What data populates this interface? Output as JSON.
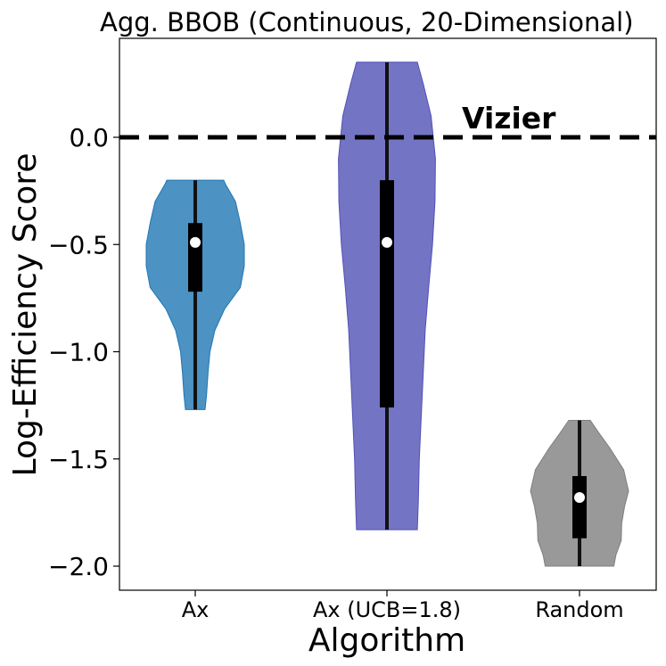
{
  "chart_data": {
    "type": "violin",
    "title": "Agg. BBOB (Continuous, 20-Dimensional)",
    "xlabel": "Algorithm",
    "ylabel": "Log-Efficiency Score",
    "ylim": [
      -2.12,
      0.45
    ],
    "yticks": [
      0.0,
      -0.5,
      -1.0,
      -1.5,
      -2.0
    ],
    "ytick_labels": [
      "0.0",
      "−0.5",
      "−1.0",
      "−1.5",
      "−2.0"
    ],
    "categories": [
      "Ax",
      "Ax (UCB=1.8)",
      "Random"
    ],
    "reference_line": {
      "y": 0.0,
      "label": "Vizier",
      "style": "dashed",
      "color": "#000000"
    },
    "grid": false,
    "series": [
      {
        "category": "Ax",
        "color": "#1f77b4",
        "min": -1.27,
        "q1": -0.72,
        "median": -0.49,
        "q3": -0.4,
        "max": -0.2,
        "profile": [
          [
            -1.27,
            0.2
          ],
          [
            -1.2,
            0.23
          ],
          [
            -1.1,
            0.26
          ],
          [
            -1.0,
            0.3
          ],
          [
            -0.9,
            0.4
          ],
          [
            -0.8,
            0.6
          ],
          [
            -0.7,
            0.92
          ],
          [
            -0.6,
            1.0
          ],
          [
            -0.5,
            1.0
          ],
          [
            -0.4,
            0.92
          ],
          [
            -0.3,
            0.82
          ],
          [
            -0.22,
            0.62
          ],
          [
            -0.2,
            0.58
          ]
        ]
      },
      {
        "category": "Ax (UCB=1.8)",
        "color": "#5151b7",
        "min": -1.83,
        "q1": -1.26,
        "median": -0.49,
        "q3": -0.2,
        "max": 0.35,
        "profile": [
          [
            -1.83,
            0.62
          ],
          [
            -1.7,
            0.64
          ],
          [
            -1.5,
            0.66
          ],
          [
            -1.3,
            0.7
          ],
          [
            -1.1,
            0.74
          ],
          [
            -0.9,
            0.78
          ],
          [
            -0.7,
            0.85
          ],
          [
            -0.5,
            0.93
          ],
          [
            -0.3,
            0.98
          ],
          [
            -0.1,
            0.99
          ],
          [
            0.1,
            0.9
          ],
          [
            0.25,
            0.74
          ],
          [
            0.35,
            0.62
          ]
        ]
      },
      {
        "category": "Random",
        "color": "#7f7f7f",
        "min": -2.0,
        "q1": -1.87,
        "median": -1.68,
        "q3": -1.58,
        "max": -1.32,
        "profile": [
          [
            -2.0,
            0.7
          ],
          [
            -1.95,
            0.74
          ],
          [
            -1.88,
            0.85
          ],
          [
            -1.8,
            0.86
          ],
          [
            -1.72,
            0.92
          ],
          [
            -1.65,
            1.0
          ],
          [
            -1.55,
            0.9
          ],
          [
            -1.45,
            0.62
          ],
          [
            -1.38,
            0.4
          ],
          [
            -1.32,
            0.22
          ]
        ]
      }
    ]
  }
}
